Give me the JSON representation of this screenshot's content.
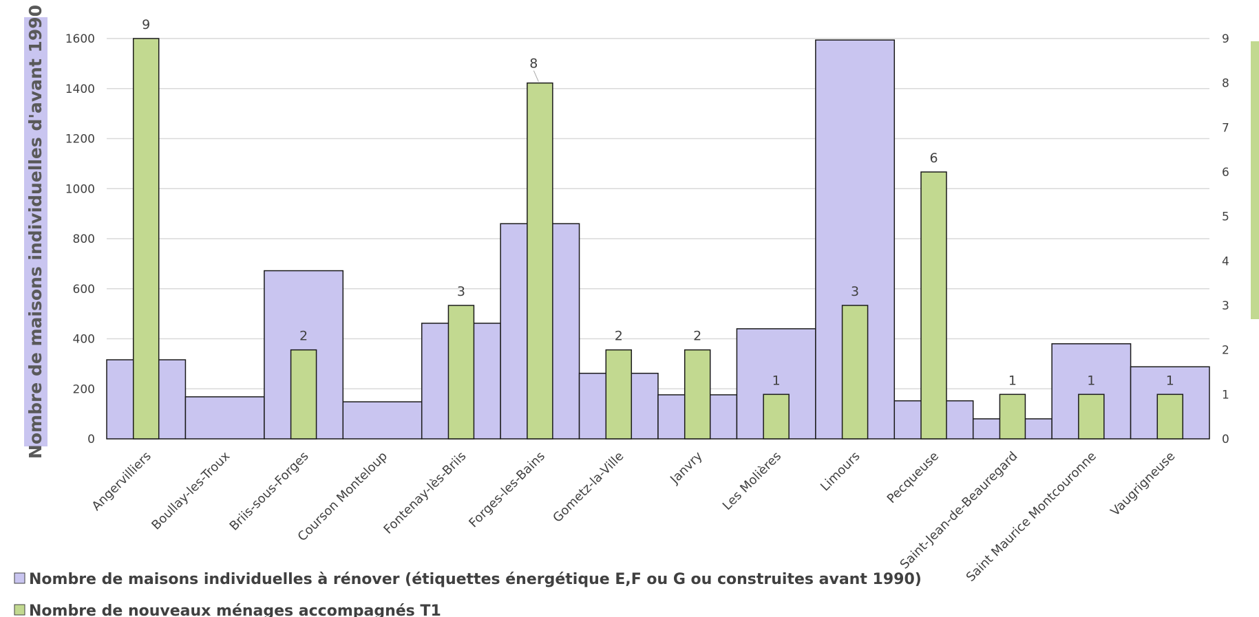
{
  "chart_data": {
    "type": "bar",
    "categories": [
      "Angervilliers",
      "Boullay-les-Troux",
      "Briis-sous-Forges",
      "Courson Monteloup",
      "Fontenay-lès-Briis",
      "Forges-les-Bains",
      "Gometz-la-Ville",
      "Janvry",
      "Les Molières",
      "Limours",
      "Pecqueuse",
      "Saint-Jean-de-Beauregard",
      "Saint Maurice Montcouronne",
      "Vaugrigneuse"
    ],
    "series": [
      {
        "name": "Nombre de maisons individuelles à rénover (étiquettes énergétique E,F ou G ou construites avant 1990)",
        "axis": "left",
        "color": "#c9c5f0",
        "values": [
          316,
          168,
          672,
          148,
          462,
          860,
          262,
          176,
          440,
          1594,
          152,
          80,
          380,
          288
        ]
      },
      {
        "name": "Nombre de nouveaux ménages accompagnés T1",
        "axis": "right",
        "color": "#c2d990",
        "values": [
          9,
          null,
          2,
          null,
          3,
          8,
          2,
          2,
          1,
          3,
          6,
          1,
          1,
          1
        ],
        "data_labels": [
          "9",
          "",
          "2",
          "",
          "3",
          "8",
          "2",
          "2",
          "1",
          "3",
          "6",
          "1",
          "1",
          "1"
        ]
      }
    ],
    "ylabel": "Nombre de maisons individuelles d'avant 1990",
    "ylim": [
      0,
      1600
    ],
    "yticks": [
      "0",
      "200",
      "400",
      "600",
      "800",
      "1000",
      "1200",
      "1400",
      "1600"
    ],
    "y2lim": [
      0,
      9
    ],
    "y2ticks": [
      "0",
      "1",
      "2",
      "3",
      "4",
      "5",
      "6",
      "7",
      "8",
      "9"
    ],
    "grid": true,
    "legend_position": "bottom-left"
  }
}
